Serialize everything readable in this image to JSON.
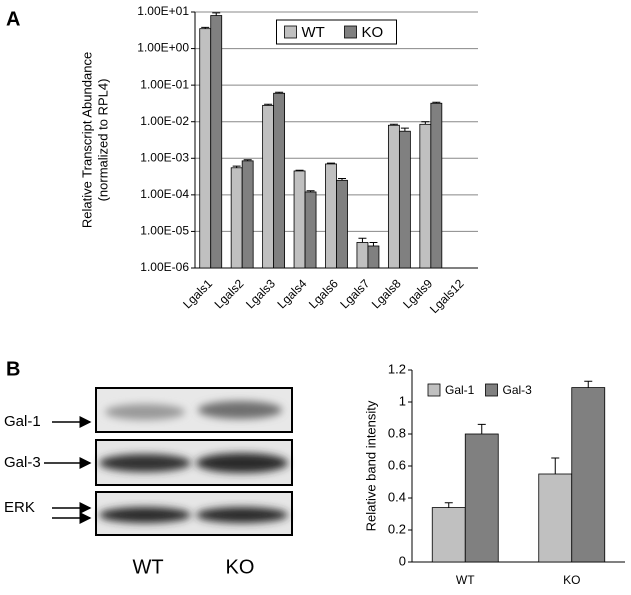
{
  "panel_labels": [
    "A",
    "B"
  ],
  "blot": {
    "rows": [
      "Gal-1",
      "Gal-3",
      "ERK"
    ],
    "lanes": [
      "WT",
      "KO"
    ]
  },
  "chart_data": [
    {
      "type": "bar",
      "log_scale": true,
      "grid": true,
      "legend": "upper center",
      "ylabel": [
        "Relative Transcript Abundance",
        "(normalized to RPL4)"
      ],
      "categories": [
        "Lgals1",
        "Lgals2",
        "Lgals3",
        "Lgals4",
        "Lgals6",
        "Lgals7",
        "Lgals8",
        "Lgals9",
        "Lgals12"
      ],
      "series": [
        {
          "name": "WT",
          "color": "#c0c0c0",
          "values": [
            3.5,
            0.00055,
            0.028,
            0.00045,
            0.0007,
            5e-06,
            0.008,
            0.0085,
            null
          ],
          "errors": [
            0.3,
            6e-05,
            0.002,
            2e-05,
            4e-05,
            1.5e-06,
            0.0005,
            0.0015,
            null
          ]
        },
        {
          "name": "KO",
          "color": "#808080",
          "values": [
            8,
            0.00085,
            0.06,
            0.00012,
            0.00025,
            4e-06,
            0.0055,
            0.032,
            null
          ],
          "errors": [
            1.5,
            6e-05,
            0.004,
            1e-05,
            3e-05,
            1e-06,
            0.0012,
            0.002,
            null
          ]
        }
      ],
      "ylim": [
        1e-06,
        10
      ],
      "yticks": [
        {
          "value": 1e-06,
          "label": "1.00E-06"
        },
        {
          "value": 1e-05,
          "label": "1.00E-05"
        },
        {
          "value": 0.0001,
          "label": "1.00E-04"
        },
        {
          "value": 0.001,
          "label": "1.00E-03"
        },
        {
          "value": 0.01,
          "label": "1.00E-02"
        },
        {
          "value": 0.1,
          "label": "1.00E-01"
        },
        {
          "value": 1,
          "label": "1.00E+00"
        },
        {
          "value": 10,
          "label": "1.00E+01"
        }
      ]
    },
    {
      "type": "bar",
      "log_scale": false,
      "grid": false,
      "legend": "upper left",
      "ylabel": [
        "Relative band intensity"
      ],
      "categories": [
        "WT",
        "KO"
      ],
      "series": [
        {
          "name": "Gal-1",
          "color": "#c0c0c0",
          "values": [
            0.34,
            0.55
          ],
          "errors": [
            0.03,
            0.1
          ]
        },
        {
          "name": "Gal-3",
          "color": "#808080",
          "values": [
            0.8,
            1.09
          ],
          "errors": [
            0.06,
            0.04
          ]
        }
      ],
      "ylim": [
        0,
        1.2
      ],
      "yticks": [
        0,
        0.2,
        0.4,
        0.6,
        0.8,
        1,
        1.2
      ]
    }
  ]
}
